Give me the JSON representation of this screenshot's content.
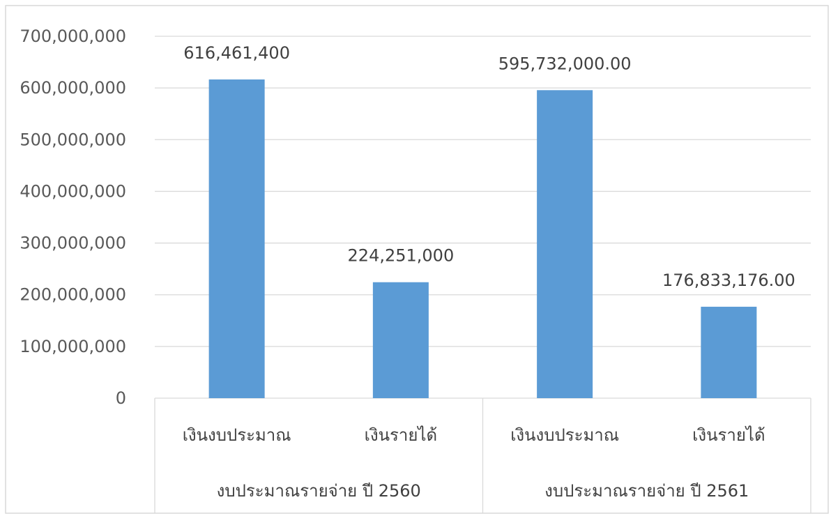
{
  "chart_data": {
    "type": "bar",
    "ylim": [
      0,
      700000000
    ],
    "y_ticks": [
      0,
      100000000,
      200000000,
      300000000,
      400000000,
      500000000,
      600000000,
      700000000
    ],
    "y_tick_labels": [
      "0",
      "100,000,000",
      "200,000,000",
      "300,000,000",
      "400,000,000",
      "500,000,000",
      "600,000,000",
      "700,000,000"
    ],
    "grid": true,
    "legend": "none",
    "bar_color": "#5b9bd5",
    "groups": [
      "งบประมาณรายจ่าย ปี 2560",
      "งบประมาณรายจ่าย ปี 2561"
    ],
    "categories": [
      "เงินงบประมาณ",
      "เงินรายได้",
      "เงินงบประมาณ",
      "เงินรายได้"
    ],
    "category_group": [
      0,
      0,
      1,
      1
    ],
    "values": [
      616461400,
      224251000,
      595732000,
      176833176
    ],
    "data_labels": [
      "616,461,400",
      "224,251,000",
      "595,732,000.00",
      "176,833,176.00"
    ]
  }
}
